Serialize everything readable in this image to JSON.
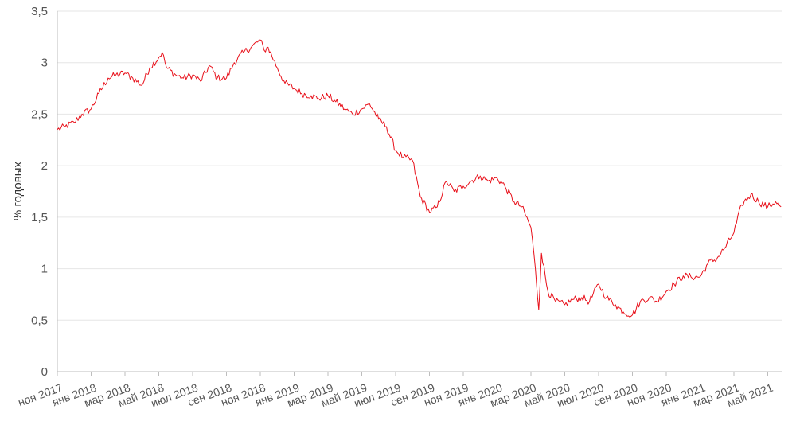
{
  "chart_data": {
    "type": "line",
    "title": "",
    "xlabel": "",
    "ylabel": "% годовых",
    "ylim": [
      0,
      3.5
    ],
    "y_ticks": [
      "0",
      "0,5",
      "1",
      "1,5",
      "2",
      "2,5",
      "3",
      "3,5"
    ],
    "x_ticks": [
      "ноя 2017",
      "янв 2018",
      "мар 2018",
      "май 2018",
      "июл 2018",
      "сен 2018",
      "ноя 2018",
      "янв 2019",
      "мар 2019",
      "май 2019",
      "июл 2019",
      "сен 2019",
      "ноя 2019",
      "янв 2020",
      "мар 2020",
      "май 2020",
      "июл 2020",
      "сен 2020",
      "ноя 2020",
      "янв 2021",
      "мар 2021",
      "май 2021"
    ],
    "grid": true,
    "line_color": "#e8101a",
    "series": [
      {
        "x": [
          "2017-11-01",
          "2017-11-15",
          "2017-12-01",
          "2017-12-15",
          "2018-01-01",
          "2018-01-15",
          "2018-02-01",
          "2018-02-15",
          "2018-03-01",
          "2018-03-15",
          "2018-04-01",
          "2018-04-15",
          "2018-05-01",
          "2018-05-07",
          "2018-05-15",
          "2018-06-01",
          "2018-06-15",
          "2018-07-01",
          "2018-07-15",
          "2018-08-01",
          "2018-08-15",
          "2018-09-01",
          "2018-09-15",
          "2018-10-01",
          "2018-10-15",
          "2018-11-01",
          "2018-11-08",
          "2018-11-15",
          "2018-12-01",
          "2018-12-15",
          "2019-01-01",
          "2019-01-15",
          "2019-02-01",
          "2019-02-15",
          "2019-03-01",
          "2019-03-15",
          "2019-04-01",
          "2019-04-15",
          "2019-05-01",
          "2019-05-15",
          "2019-06-01",
          "2019-06-15",
          "2019-07-01",
          "2019-07-15",
          "2019-08-01",
          "2019-08-15",
          "2019-09-01",
          "2019-09-15",
          "2019-10-01",
          "2019-10-15",
          "2019-11-01",
          "2019-11-15",
          "2019-12-01",
          "2019-12-15",
          "2020-01-01",
          "2020-01-15",
          "2020-02-01",
          "2020-02-15",
          "2020-03-01",
          "2020-03-09",
          "2020-03-15",
          "2020-03-20",
          "2020-04-01",
          "2020-04-15",
          "2020-05-01",
          "2020-05-15",
          "2020-06-01",
          "2020-06-15",
          "2020-07-01",
          "2020-07-15",
          "2020-08-01",
          "2020-08-15",
          "2020-09-01",
          "2020-09-15",
          "2020-10-01",
          "2020-10-15",
          "2020-11-01",
          "2020-11-15",
          "2020-12-01",
          "2020-12-15",
          "2021-01-01",
          "2021-01-15",
          "2021-02-01",
          "2021-02-15",
          "2021-03-01",
          "2021-03-15",
          "2021-04-01",
          "2021-04-15",
          "2021-05-01",
          "2021-05-15",
          "2021-05-25"
        ],
        "y": [
          2.35,
          2.38,
          2.42,
          2.5,
          2.55,
          2.7,
          2.85,
          2.88,
          2.9,
          2.85,
          2.78,
          2.95,
          3.05,
          3.1,
          2.95,
          2.88,
          2.85,
          2.88,
          2.82,
          2.97,
          2.85,
          2.85,
          3.0,
          3.1,
          3.15,
          3.22,
          3.12,
          3.15,
          2.95,
          2.8,
          2.75,
          2.7,
          2.68,
          2.65,
          2.68,
          2.62,
          2.55,
          2.5,
          2.55,
          2.6,
          2.45,
          2.38,
          2.15,
          2.08,
          2.05,
          1.7,
          1.55,
          1.6,
          1.85,
          1.75,
          1.8,
          1.85,
          1.9,
          1.85,
          1.88,
          1.8,
          1.65,
          1.6,
          1.4,
          1.0,
          0.6,
          1.15,
          0.78,
          0.68,
          0.65,
          0.7,
          0.72,
          0.68,
          0.85,
          0.72,
          0.65,
          0.58,
          0.55,
          0.68,
          0.72,
          0.68,
          0.78,
          0.85,
          0.93,
          0.92,
          0.92,
          1.05,
          1.1,
          1.2,
          1.35,
          1.62,
          1.72,
          1.65,
          1.6,
          1.65,
          1.6
        ]
      }
    ]
  }
}
